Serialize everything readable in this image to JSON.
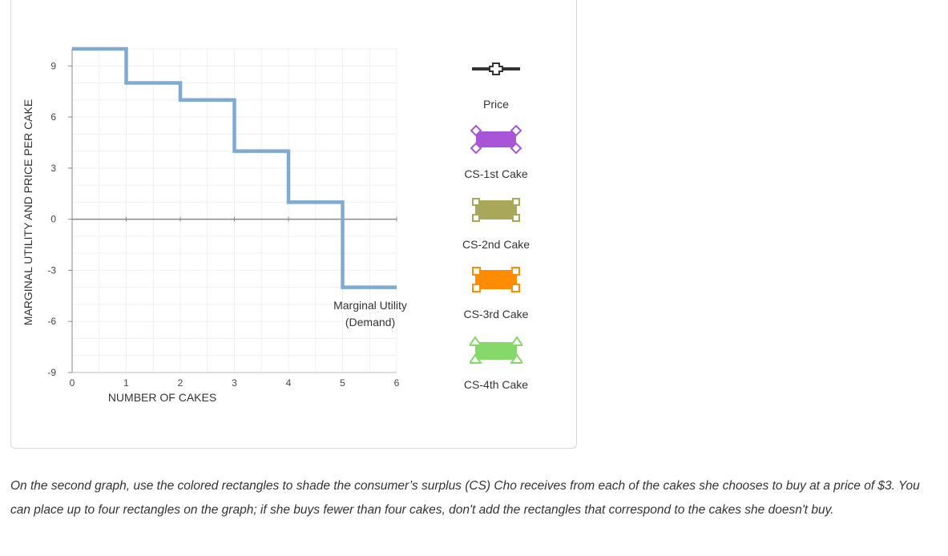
{
  "chart_data": {
    "type": "line",
    "title": "",
    "xlabel": "NUMBER OF CAKES",
    "ylabel": "MARGINAL UTILITY AND PRICE PER CAKE",
    "xlim": [
      0,
      6
    ],
    "ylim": [
      -9,
      10
    ],
    "x_ticks": [
      0,
      1,
      2,
      3,
      4,
      5,
      6
    ],
    "y_ticks": [
      9,
      6,
      3,
      0,
      -3,
      -6,
      -9
    ],
    "grid": true,
    "series": [
      {
        "name": "Marginal Utility (Demand)",
        "style": "step",
        "color": "#7faad4",
        "x": [
          0,
          1,
          1,
          2,
          2,
          3,
          3,
          4,
          4,
          5,
          5,
          6
        ],
        "y": [
          10,
          10,
          8,
          8,
          7,
          7,
          4,
          4,
          1,
          1,
          -4,
          -4
        ]
      }
    ],
    "curve_label": [
      "Marginal Utility",
      "(Demand)"
    ]
  },
  "tools": [
    {
      "id": "price",
      "label": "Price",
      "icon": "price-line-cross-icon",
      "color": "#333333"
    },
    {
      "id": "cs1",
      "label": "CS-1st Cake",
      "icon": "diamond-corner-rectangle-icon",
      "color": "#a855d8"
    },
    {
      "id": "cs2",
      "label": "CS-2nd Cake",
      "icon": "square-corner-rectangle-icon",
      "color": "#a9a75a"
    },
    {
      "id": "cs3",
      "label": "CS-3rd Cake",
      "icon": "square-corner-rectangle-icon",
      "color": "#ff8c00"
    },
    {
      "id": "cs4",
      "label": "CS-4th Cake",
      "icon": "triangle-corner-rectangle-icon",
      "color": "#86d86a"
    }
  ],
  "instructions": "On the second graph, use the colored rectangles to shade the consumer’s surplus (CS) Cho receives from each of the cakes she chooses to buy at a price of $3. You can place up to four rectangles on the graph; if she buys fewer than four cakes, don't add the rectangles that correspond to the cakes she doesn't buy."
}
